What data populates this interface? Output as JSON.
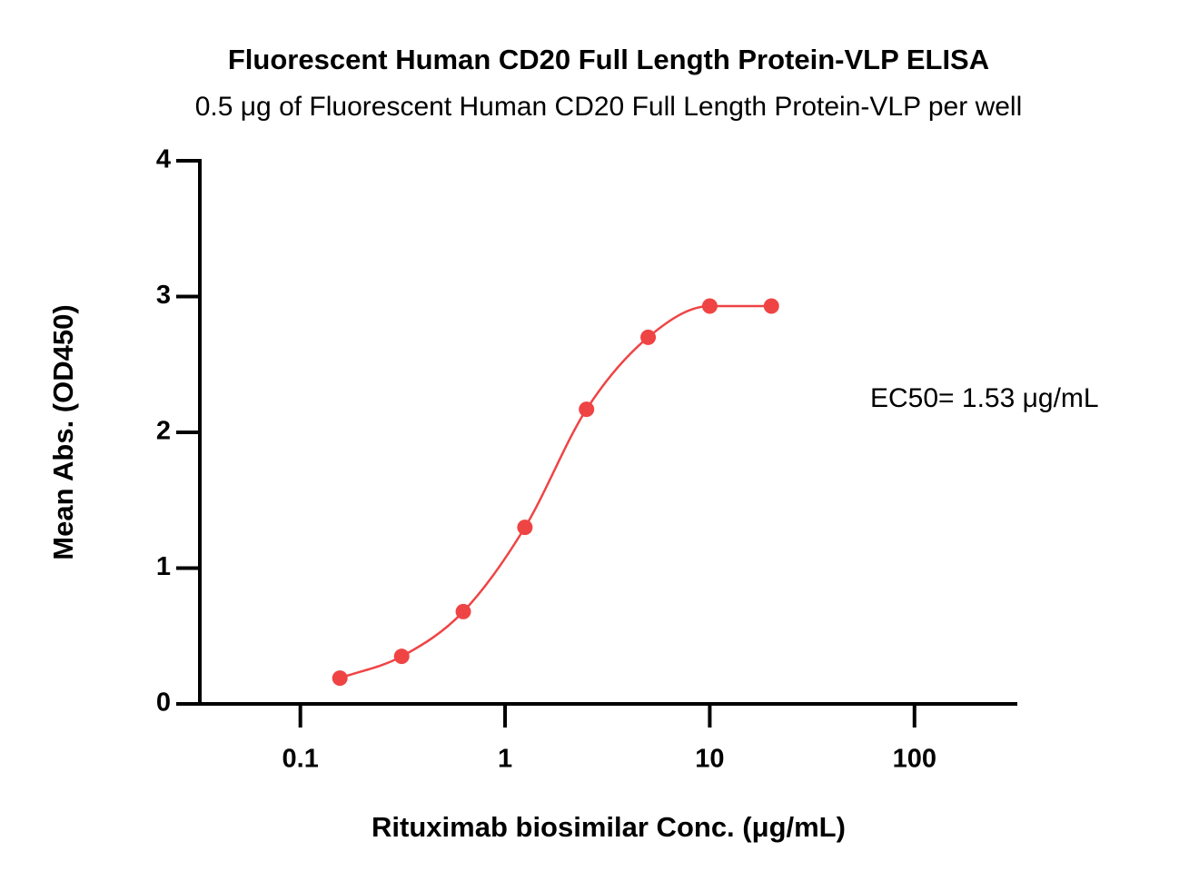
{
  "chart_data": {
    "type": "scatter",
    "title": "Fluorescent Human CD20 Full Length Protein-VLP ELISA",
    "subtitle": "0.5 μg of Fluorescent Human CD20 Full Length Protein-VLP per well",
    "x_label": "Rituximab biosimilar Conc. (μg/mL)",
    "y_label": "Mean Abs. (OD450)",
    "annotation": "EC50= 1.53 μg/mL",
    "x": [
      0.156,
      0.3125,
      0.625,
      1.25,
      2.5,
      5,
      10,
      20
    ],
    "values": [
      0.19,
      0.35,
      0.68,
      1.3,
      2.17,
      2.7,
      2.93,
      2.93
    ],
    "color": "#ef4444",
    "xscale": "log",
    "fit_line": true,
    "xlim": [
      0.025,
      318
    ],
    "xticks": [
      0.1,
      1,
      10,
      100
    ],
    "ylim": [
      0,
      4
    ],
    "yticks": [
      0,
      1,
      2,
      3,
      4
    ],
    "grid": false
  }
}
